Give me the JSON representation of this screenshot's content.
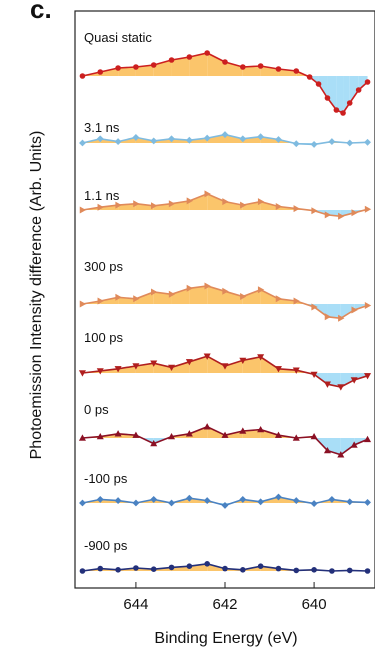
{
  "panel_label": "c.",
  "chart_data": {
    "type": "line",
    "title": "",
    "xlabel": "Binding Energy (eV)",
    "ylabel": "Photoemission Intensity difference (Arb. Units)",
    "xlim": [
      645.3,
      638.7
    ],
    "x_reversed": true,
    "xticks": [
      644,
      642,
      640
    ],
    "positive_fill": "#fbc56b",
    "negative_fill": "#a9def7",
    "series": [
      {
        "name": "Quasi static",
        "marker": "circle",
        "color": "#cc1f1f",
        "x": [
          645.2,
          644.8,
          644.4,
          644.0,
          643.6,
          643.2,
          642.8,
          642.4,
          642.0,
          641.6,
          641.2,
          640.8,
          640.4,
          640.1,
          639.9,
          639.7,
          639.5,
          639.35,
          639.2,
          639.0,
          638.8
        ],
        "y": [
          0.0,
          0.2,
          0.4,
          0.45,
          0.55,
          0.8,
          0.95,
          1.15,
          0.7,
          0.45,
          0.5,
          0.35,
          0.25,
          -0.05,
          -0.4,
          -1.1,
          -1.7,
          -1.85,
          -1.35,
          -0.7,
          -0.3
        ]
      },
      {
        "name": "3.1 ns",
        "marker": "diamond",
        "color": "#7fbbe0",
        "x": [
          645.2,
          644.8,
          644.4,
          644.0,
          643.6,
          643.2,
          642.8,
          642.4,
          642.0,
          641.6,
          641.2,
          640.8,
          640.4,
          640.0,
          639.6,
          639.2,
          638.8
        ],
        "y": [
          0.0,
          0.3,
          0.1,
          0.4,
          0.15,
          0.3,
          0.2,
          0.35,
          0.6,
          0.3,
          0.45,
          0.25,
          -0.05,
          -0.1,
          0.1,
          0.0,
          0.05
        ]
      },
      {
        "name": "1.1 ns",
        "marker": "triangle-right",
        "color": "#e08a5a",
        "x": [
          645.2,
          644.8,
          644.4,
          644.0,
          643.6,
          643.2,
          642.8,
          642.4,
          642.0,
          641.6,
          641.2,
          640.8,
          640.4,
          640.0,
          639.7,
          639.4,
          639.1,
          638.8
        ],
        "y": [
          0.0,
          0.2,
          0.35,
          0.45,
          0.3,
          0.45,
          0.65,
          1.15,
          0.6,
          0.35,
          0.6,
          0.25,
          0.1,
          -0.05,
          -0.35,
          -0.45,
          -0.2,
          0.05
        ]
      },
      {
        "name": "300 ps",
        "marker": "triangle-right",
        "color": "#e08a5a",
        "x": [
          645.2,
          644.8,
          644.4,
          644.0,
          643.6,
          643.2,
          642.8,
          642.4,
          642.0,
          641.6,
          641.2,
          640.8,
          640.4,
          640.0,
          639.7,
          639.4,
          639.1,
          638.8
        ],
        "y": [
          0.0,
          0.2,
          0.45,
          0.35,
          0.8,
          0.65,
          1.05,
          1.2,
          0.85,
          0.5,
          0.95,
          0.35,
          0.2,
          -0.2,
          -0.85,
          -0.95,
          -0.4,
          -0.1
        ]
      },
      {
        "name": "100 ps",
        "marker": "triangle-down",
        "color": "#b01e1e",
        "x": [
          645.2,
          644.8,
          644.4,
          644.0,
          643.6,
          643.2,
          642.8,
          642.4,
          642.0,
          641.6,
          641.2,
          640.8,
          640.4,
          640.0,
          639.7,
          639.4,
          639.1,
          638.8
        ],
        "y": [
          0.0,
          0.15,
          0.3,
          0.5,
          0.7,
          0.4,
          0.8,
          1.2,
          0.5,
          0.9,
          1.15,
          0.3,
          0.2,
          -0.1,
          -0.8,
          -1.0,
          -0.5,
          -0.2
        ]
      },
      {
        "name": "0 ps",
        "marker": "triangle-up",
        "color": "#8b1024",
        "x": [
          645.2,
          644.8,
          644.4,
          644.0,
          643.6,
          643.2,
          642.8,
          642.4,
          642.0,
          641.6,
          641.2,
          640.8,
          640.4,
          640.0,
          639.7,
          639.4,
          639.1,
          638.8
        ],
        "y": [
          0.0,
          0.1,
          0.3,
          0.2,
          -0.4,
          0.1,
          0.3,
          0.8,
          0.2,
          0.5,
          0.6,
          0.2,
          0.0,
          0.1,
          -0.9,
          -1.2,
          -0.5,
          -0.1
        ]
      },
      {
        "name": "-100 ps",
        "marker": "diamond",
        "color": "#4a82c2",
        "x": [
          645.2,
          644.8,
          644.4,
          644.0,
          643.6,
          643.2,
          642.8,
          642.4,
          642.0,
          641.6,
          641.2,
          640.8,
          640.4,
          640.0,
          639.6,
          639.2,
          638.8
        ],
        "y": [
          0.0,
          0.3,
          0.2,
          0.0,
          0.3,
          0.0,
          0.4,
          0.2,
          -0.2,
          0.3,
          0.1,
          0.5,
          0.2,
          -0.05,
          0.3,
          0.1,
          0.05
        ]
      },
      {
        "name": "-900 ps",
        "marker": "circle",
        "color": "#23307a",
        "x": [
          645.2,
          644.8,
          644.4,
          644.0,
          643.6,
          643.2,
          642.8,
          642.4,
          642.0,
          641.6,
          641.2,
          640.8,
          640.4,
          640.0,
          639.6,
          639.2,
          638.8
        ],
        "y": [
          0.0,
          0.2,
          0.1,
          0.25,
          0.15,
          0.3,
          0.4,
          0.6,
          0.2,
          0.1,
          0.4,
          0.2,
          0.05,
          0.1,
          0.0,
          0.05,
          0.0
        ]
      }
    ]
  }
}
